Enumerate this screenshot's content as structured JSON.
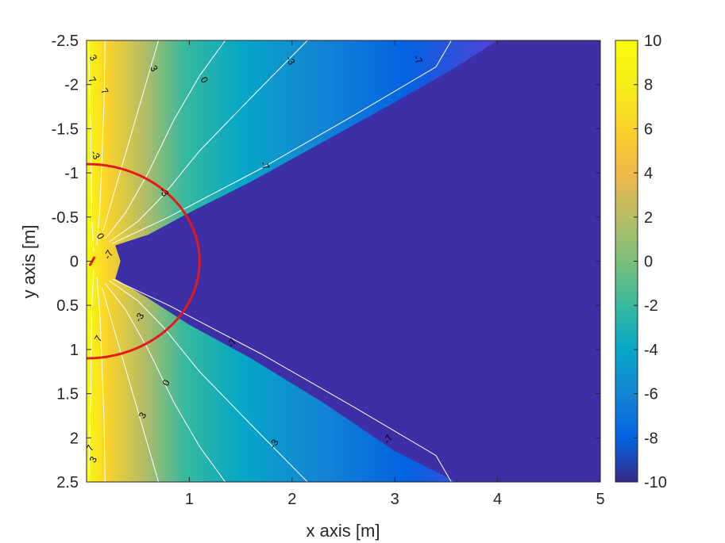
{
  "chart_data": {
    "type": "heatmap",
    "xlabel": "x axis [m]",
    "ylabel": "y axis [m]",
    "xlim": [
      0,
      5
    ],
    "ylim": [
      -2.5,
      2.5
    ],
    "y_axis_direction": "reversed",
    "x_ticks": [
      "1",
      "2",
      "3",
      "4",
      "5"
    ],
    "y_ticks": [
      "-2.5",
      "-2",
      "-1.5",
      "-1",
      "-0.5",
      "0",
      "0.5",
      "1",
      "1.5",
      "2",
      "2.5"
    ],
    "colorbar": {
      "colormap": "parula",
      "limits": [
        -10,
        10
      ],
      "ticks": [
        "10",
        "8",
        "6",
        "4",
        "2",
        "0",
        "-2",
        "-4",
        "-6",
        "-8",
        "-10"
      ]
    },
    "contour_levels": [
      -7,
      -3,
      0,
      3,
      7
    ],
    "contour_labels_top": [
      {
        "text": "3",
        "x": 0.65,
        "y": -2.18
      },
      {
        "text": "0",
        "x": 1.14,
        "y": -2.05
      },
      {
        "text": "-3",
        "x": 1.98,
        "y": -2.27
      },
      {
        "text": "-7",
        "x": 3.22,
        "y": -2.28
      },
      {
        "text": "-7",
        "x": 1.73,
        "y": -1.08
      },
      {
        "text": "-3",
        "x": 0.75,
        "y": -0.78
      },
      {
        "text": "0",
        "x": 0.13,
        "y": -0.28
      },
      {
        "text": "-3",
        "x": 0.08,
        "y": -1.2
      },
      {
        "text": "7",
        "x": 0.05,
        "y": -2.05
      },
      {
        "text": "3",
        "x": 0.06,
        "y": -2.3
      },
      {
        "text": "7",
        "x": 0.17,
        "y": -1.92
      }
    ],
    "contour_labels_bottom": [
      {
        "text": "-3",
        "x": 0.52,
        "y": 0.64
      },
      {
        "text": "-7",
        "x": 1.42,
        "y": 0.93
      },
      {
        "text": "0",
        "x": 0.78,
        "y": 1.38
      },
      {
        "text": "3",
        "x": 0.55,
        "y": 1.75
      },
      {
        "text": "-3",
        "x": 1.83,
        "y": 2.07
      },
      {
        "text": "-7",
        "x": 2.94,
        "y": 2.02
      },
      {
        "text": "7",
        "x": 0.12,
        "y": 0.88
      },
      {
        "text": "-7",
        "x": 0.22,
        "y": -0.07
      },
      {
        "text": "7",
        "x": 0.04,
        "y": 2.12
      },
      {
        "text": "3",
        "x": 0.07,
        "y": 2.25
      }
    ],
    "overlay_circle": {
      "center": [
        0,
        0
      ],
      "radius": 1.1,
      "color": "#e31a1c"
    },
    "colors": {
      "dark_region": "#3d2fa6",
      "contour_line": "#ffffff",
      "highlight": "#e31a1c"
    }
  }
}
